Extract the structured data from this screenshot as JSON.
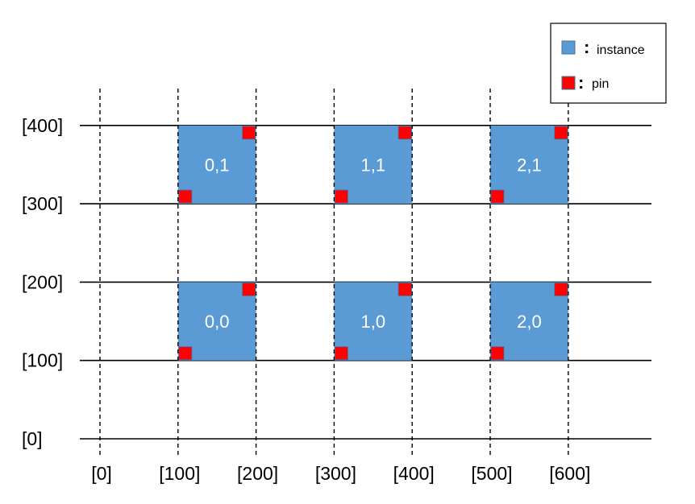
{
  "colors": {
    "instance": "#5b9bd5",
    "pin": "#ff0000",
    "line": "#000000"
  },
  "x_ticks": [
    "[0]",
    "[100]",
    "[200]",
    "[300]",
    "[400]",
    "[500]",
    "[600]"
  ],
  "y_ticks": [
    "[0]",
    "[100]",
    "[200]",
    "[300]",
    "[400]"
  ],
  "instances": [
    {
      "label": "0,0",
      "x": 100,
      "y": 100
    },
    {
      "label": "1,0",
      "x": 300,
      "y": 100
    },
    {
      "label": "2,0",
      "x": 500,
      "y": 100
    },
    {
      "label": "0,1",
      "x": 100,
      "y": 300
    },
    {
      "label": "1,1",
      "x": 300,
      "y": 300
    },
    {
      "label": "2,1",
      "x": 500,
      "y": 300
    }
  ],
  "legend": {
    "instance_label": "instance",
    "pin_label": "pin",
    "colon": ":"
  }
}
